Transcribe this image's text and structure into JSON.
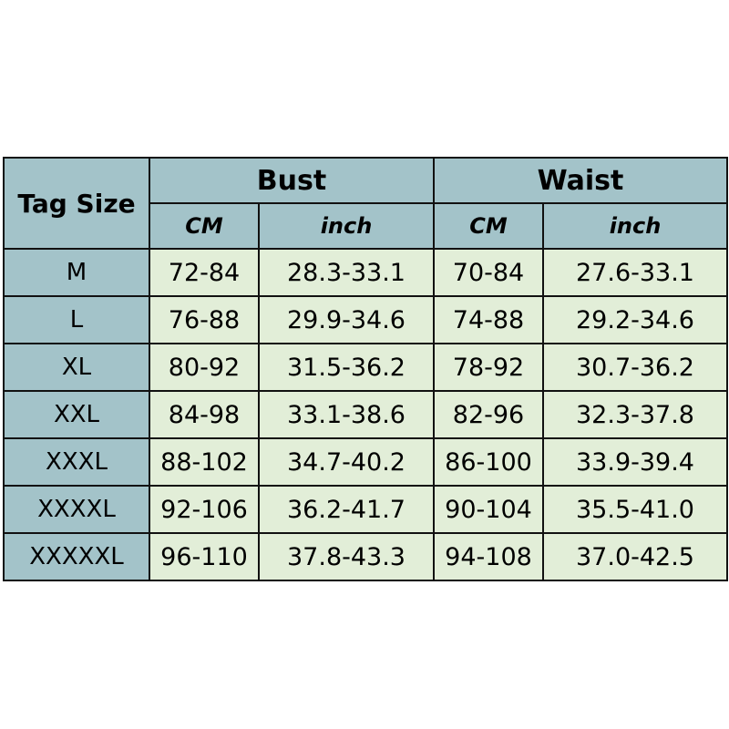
{
  "header": {
    "tag_size": "Tag Size",
    "bust": "Bust",
    "waist": "Waist",
    "bust_cm": "CM",
    "bust_inch": "inch",
    "waist_cm": "CM",
    "waist_inch": "inch"
  },
  "colors": {
    "header": "#a3c3c9",
    "cell": "#e2eed8",
    "border": "#111111"
  },
  "rows": [
    {
      "size": "M",
      "bust_cm": "72-84",
      "bust_inch": "28.3-33.1",
      "waist_cm": "70-84",
      "waist_inch": "27.6-33.1"
    },
    {
      "size": "L",
      "bust_cm": "76-88",
      "bust_inch": "29.9-34.6",
      "waist_cm": "74-88",
      "waist_inch": "29.2-34.6"
    },
    {
      "size": "XL",
      "bust_cm": "80-92",
      "bust_inch": "31.5-36.2",
      "waist_cm": "78-92",
      "waist_inch": "30.7-36.2"
    },
    {
      "size": "XXL",
      "bust_cm": "84-98",
      "bust_inch": "33.1-38.6",
      "waist_cm": "82-96",
      "waist_inch": "32.3-37.8"
    },
    {
      "size": "XXXL",
      "bust_cm": "88-102",
      "bust_inch": "34.7-40.2",
      "waist_cm": "86-100",
      "waist_inch": "33.9-39.4"
    },
    {
      "size": "XXXXL",
      "bust_cm": "92-106",
      "bust_inch": "36.2-41.7",
      "waist_cm": "90-104",
      "waist_inch": "35.5-41.0"
    },
    {
      "size": "XXXXXL",
      "bust_cm": "96-110",
      "bust_inch": "37.8-43.3",
      "waist_cm": "94-108",
      "waist_inch": "37.0-42.5"
    }
  ]
}
